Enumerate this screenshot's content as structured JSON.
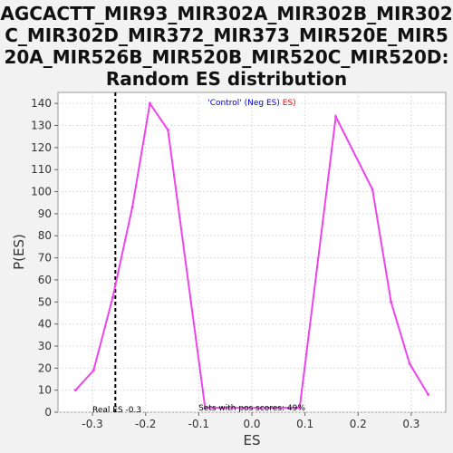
{
  "chart_data": {
    "type": "line",
    "title_lines": [
      "AGCACTT_MIR93_MIR302A_MIR302B_MIR302",
      "C_MIR302D_MIR372_MIR373_MIR520E_MIR5",
      "20A_MIR526B_MIR520B_MIR520C_MIR520D:",
      "Random ES distribution"
    ],
    "xlabel": "ES",
    "ylabel": "P(ES)",
    "xlim": [
      -0.365,
      0.365
    ],
    "ylim": [
      0,
      145
    ],
    "x_ticks": [
      -0.3,
      -0.2,
      -0.1,
      0.0,
      0.1,
      0.2,
      0.3
    ],
    "x_tick_labels": [
      "-0.3",
      "-0.2",
      "-0.1",
      "0.0",
      "0.1",
      "0.2",
      "0.3"
    ],
    "y_ticks": [
      0,
      10,
      20,
      30,
      40,
      50,
      60,
      70,
      80,
      90,
      100,
      110,
      120,
      130,
      140
    ],
    "y_tick_labels": [
      "0",
      "10",
      "20",
      "30",
      "40",
      "50",
      "60",
      "70",
      "80",
      "90",
      "100",
      "110",
      "120",
      "130",
      "140"
    ],
    "grid": true,
    "legend": {
      "prefix": "'Control' (Neg ES)",
      "suffix": "ES)",
      "prefix_color": "#0000cc",
      "suffix_color": "#ff0000",
      "placement": "top-center"
    },
    "series": [
      {
        "color": "#ee44ee",
        "x": [
          -0.332,
          -0.298,
          -0.262,
          -0.225,
          -0.192,
          -0.158,
          -0.088,
          0.09,
          0.158,
          0.227,
          0.262,
          0.297,
          0.332
        ],
        "y": [
          10,
          19,
          52,
          93,
          140,
          128,
          2,
          2,
          134,
          101,
          50,
          22,
          8
        ]
      }
    ],
    "real_es": {
      "x": -0.257,
      "label": "Real ES -0.3"
    },
    "pos_scores_label": "Sets with pos scores: 49%"
  },
  "colors": {
    "background": "#f2f2f2",
    "plot_background": "#ffffff",
    "line": "#ee44ee",
    "grid": "#dddddd"
  }
}
